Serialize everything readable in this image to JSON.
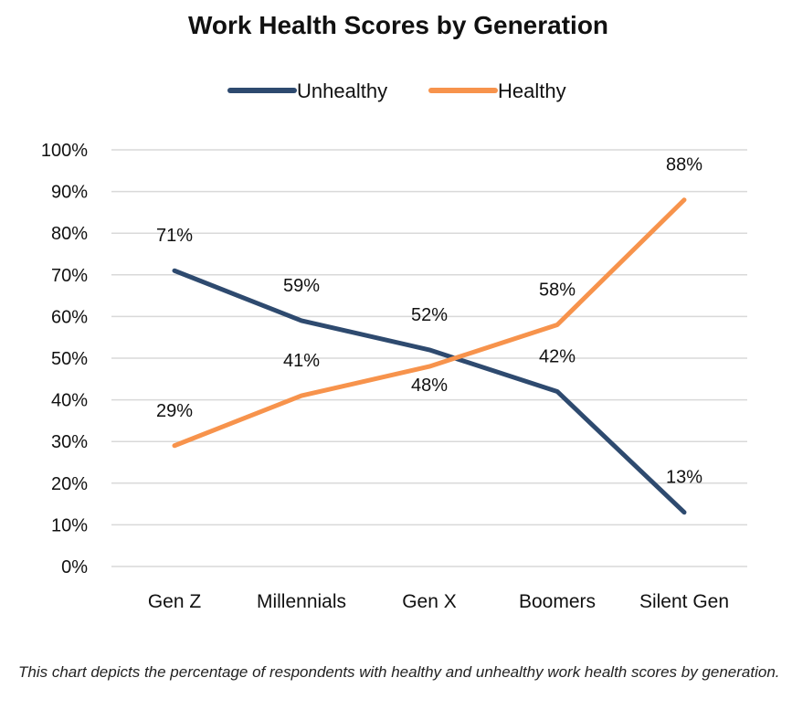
{
  "chart_data": {
    "type": "line",
    "title": "Work Health Scores by Generation",
    "categories": [
      "Gen Z",
      "Millennials",
      "Gen X",
      "Boomers",
      "Silent Gen"
    ],
    "series": [
      {
        "name": "Unhealthy",
        "color": "#2e4a6f",
        "values": [
          71,
          59,
          52,
          42,
          13
        ],
        "labels": [
          "71%",
          "59%",
          "52%",
          "42%",
          "13%"
        ]
      },
      {
        "name": "Healthy",
        "color": "#f7934c",
        "values": [
          29,
          41,
          48,
          58,
          88
        ],
        "labels": [
          "29%",
          "41%",
          "48%",
          "58%",
          "88%"
        ]
      }
    ],
    "ylim": [
      0,
      100
    ],
    "yticks": [
      0,
      10,
      20,
      30,
      40,
      50,
      60,
      70,
      80,
      90,
      100
    ],
    "ytick_labels": [
      "0%",
      "10%",
      "20%",
      "30%",
      "40%",
      "50%",
      "60%",
      "70%",
      "80%",
      "90%",
      "100%"
    ],
    "grid": true,
    "legend": "top-center",
    "xlabel": "",
    "ylabel": ""
  },
  "caption": "This chart depicts the percentage of respondents with healthy and unhealthy work health scores by generation."
}
